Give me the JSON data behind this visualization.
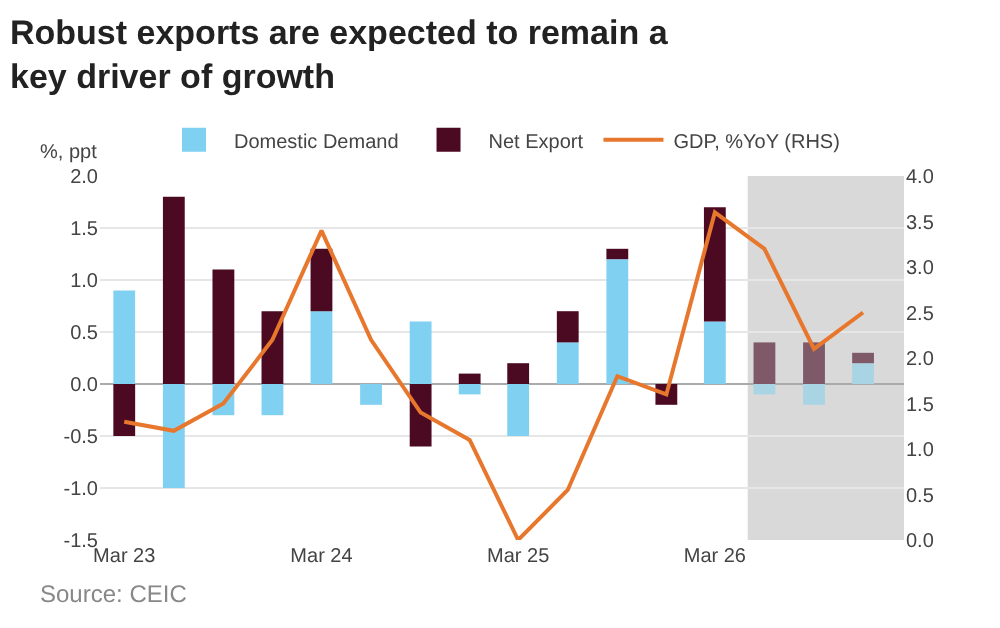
{
  "chart_data": {
    "type": "bar",
    "title": "Robust exports are expected to remain a key driver of growth",
    "ylabel": "%, ppt",
    "stacked": true,
    "x": [
      "2023-03",
      "2023-06",
      "2023-09",
      "2023-12",
      "2024-03",
      "2024-06",
      "2024-09",
      "2024-12",
      "2025-03",
      "2025-06",
      "2025-09",
      "2025-12",
      "2026-03",
      "2026-06",
      "2026-09",
      "2026-12"
    ],
    "series": [
      {
        "name": "Domestic Demand",
        "colors": [
          "#80d0f2",
          "#80d0f2",
          "#80d0f2",
          "#80d0f2",
          "#80d0f2",
          "#80d0f2",
          "#80d0f2",
          "#80d0f2",
          "#80d0f2",
          "#80d0f2",
          "#80d0f2",
          "#80d0f2",
          "#80d0f2",
          "#a9d4e4",
          "#a9d4e4",
          "#a9d4e4"
        ],
        "values": [
          0.9,
          -1.0,
          -0.3,
          -0.3,
          0.7,
          -0.2,
          0.6,
          -0.1,
          -0.5,
          0.4,
          1.2,
          0.0,
          0.6,
          -0.1,
          -0.2,
          0.2
        ]
      },
      {
        "name": "Net Export",
        "colors": [
          "#4b0a22",
          "#4b0a22",
          "#4b0a22",
          "#4b0a22",
          "#4b0a22",
          "#4b0a22",
          "#4b0a22",
          "#4b0a22",
          "#4b0a22",
          "#4b0a22",
          "#4b0a22",
          "#4b0a22",
          "#4b0a22",
          "#7e5a68",
          "#7e5a68",
          "#7e5a68"
        ],
        "values": [
          -0.5,
          1.8,
          1.1,
          0.7,
          0.6,
          0.0,
          -0.6,
          0.1,
          0.2,
          0.3,
          0.1,
          -0.2,
          1.1,
          0.4,
          0.4,
          0.1
        ]
      },
      {
        "name": "GDP, %YoY (RHS)",
        "type": "line",
        "axis": "y2",
        "color": "#e8772e",
        "values": [
          1.3,
          1.2,
          1.5,
          2.2,
          3.4,
          2.2,
          1.4,
          1.1,
          0.0,
          0.55,
          1.8,
          1.6,
          3.6,
          3.2,
          2.1,
          2.5
        ]
      }
    ],
    "xlim": [
      "2023-01-15",
      "2027-02-15"
    ],
    "xticks": [
      {
        "value": "2023-03",
        "label": "Mar 23"
      },
      {
        "value": "2024-03",
        "label": "Mar 24"
      },
      {
        "value": "2025-03",
        "label": "Mar 25"
      },
      {
        "value": "2026-03",
        "label": "Mar 26"
      }
    ],
    "ylim": [
      -1.5,
      2.0
    ],
    "yticks": [
      {
        "value": -1.5,
        "label": "-1.5"
      },
      {
        "value": -1.0,
        "label": "-1.0"
      },
      {
        "value": -0.5,
        "label": "-0.5"
      },
      {
        "value": 0,
        "label": "0.0"
      },
      {
        "value": 0.5,
        "label": "0.5"
      },
      {
        "value": 1.0,
        "label": "1.0"
      },
      {
        "value": 1.5,
        "label": "1.5"
      },
      {
        "value": 2.0,
        "label": "2.0"
      }
    ],
    "y2lim": [
      0,
      4.0
    ],
    "y2ticks": [
      {
        "value": 0,
        "label": "0.0"
      },
      {
        "value": 0.5,
        "label": "0.5"
      },
      {
        "value": 1.0,
        "label": "1.0"
      },
      {
        "value": 1.5,
        "label": "1.5"
      },
      {
        "value": 2.0,
        "label": "2.0"
      },
      {
        "value": 2.5,
        "label": "2.5"
      },
      {
        "value": 3.0,
        "label": "3.0"
      },
      {
        "value": 3.5,
        "label": "3.5"
      },
      {
        "value": 4.0,
        "label": "4.0"
      }
    ],
    "bands": [
      {
        "axis": "x",
        "from": "2026-05-01",
        "to": "2027-02-15",
        "color": "#d9d9d9"
      }
    ],
    "grid": "y",
    "legend": "top",
    "marker": "none",
    "line_style": "solid",
    "annotations": [
      "Source: CEIC"
    ]
  }
}
